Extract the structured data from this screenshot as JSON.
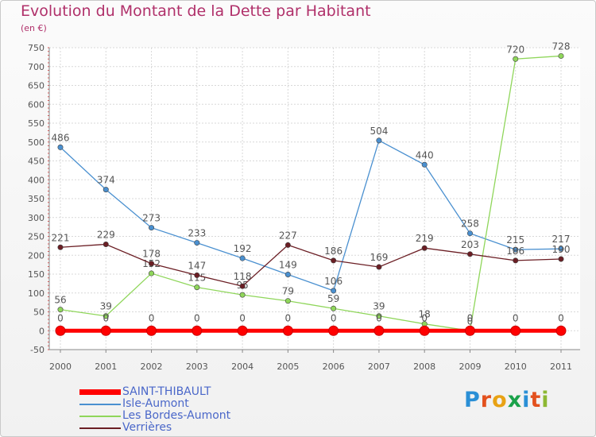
{
  "title": "Evolution du Montant de la Dette par Habitant",
  "subtitle": "(en €)",
  "logo": {
    "text": "Proxiti",
    "letters": [
      "P",
      "r",
      "o",
      "x",
      "i",
      "t",
      "i"
    ],
    "colors": [
      "#2a8fd6",
      "#e3511e",
      "#e8a214",
      "#1aa24a",
      "#2a8fd6",
      "#e3511e",
      "#8db833"
    ]
  },
  "chart_data": {
    "type": "line",
    "categories": [
      "2000",
      "2001",
      "2002",
      "2003",
      "2004",
      "2005",
      "2006",
      "2007",
      "2008",
      "2009",
      "2010",
      "2011"
    ],
    "ylim": [
      -50,
      750
    ],
    "yticks": [
      -50,
      0,
      50,
      100,
      150,
      200,
      250,
      300,
      350,
      400,
      450,
      500,
      550,
      600,
      650,
      700,
      750
    ],
    "grid": true,
    "legend_position": "bottom-left",
    "series": [
      {
        "name": "Isle-Aumont",
        "color": "#4a90d0",
        "values": [
          486,
          374,
          273,
          233,
          192,
          149,
          106,
          504,
          440,
          258,
          215,
          217
        ]
      },
      {
        "name": "Les Bordes-Aumont",
        "color": "#8fd65a",
        "values": [
          56,
          39,
          152,
          115,
          95,
          79,
          59,
          39,
          18,
          0,
          720,
          728
        ]
      },
      {
        "name": "Verrières",
        "color": "#6b1e24",
        "values": [
          221,
          229,
          178,
          147,
          118,
          227,
          186,
          169,
          219,
          203,
          186,
          190
        ]
      },
      {
        "name": "SAINT-THIBAULT",
        "color": "#ff0000",
        "values": [
          0,
          0,
          0,
          0,
          0,
          0,
          0,
          0,
          0,
          0,
          0,
          0
        ]
      }
    ],
    "legend_order": [
      "SAINT-THIBAULT",
      "Isle-Aumont",
      "Les Bordes-Aumont",
      "Verrières"
    ]
  }
}
